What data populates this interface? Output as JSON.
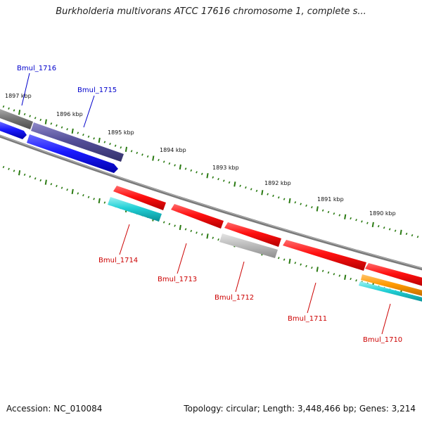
{
  "title": "Burkholderia multivorans ATCC 17616 chromosome 1, complete s...",
  "footer": {
    "accession": "Accession: NC_010084",
    "summary": "Topology: circular; Length: 3,448,466 bp; Genes: 3,214"
  },
  "colors": {
    "forward_label": "#0000cc",
    "reverse_label": "#cc0000",
    "tick": "#2a7a12",
    "backbone": "#7a7a7a"
  },
  "scale_labels": [
    "1897 kbp",
    "1896 kbp",
    "1895 kbp",
    "1894 kbp",
    "1893 kbp",
    "1892 kbp",
    "1891 kbp",
    "1890 kbp"
  ],
  "genes": [
    {
      "name": "Bmul_1716",
      "strand": "forward"
    },
    {
      "name": "Bmul_1715",
      "strand": "forward"
    },
    {
      "name": "Bmul_1714",
      "strand": "reverse"
    },
    {
      "name": "Bmul_1713",
      "strand": "reverse"
    },
    {
      "name": "Bmul_1712",
      "strand": "reverse"
    },
    {
      "name": "Bmul_1711",
      "strand": "reverse"
    },
    {
      "name": "Bmul_1710",
      "strand": "reverse"
    }
  ]
}
